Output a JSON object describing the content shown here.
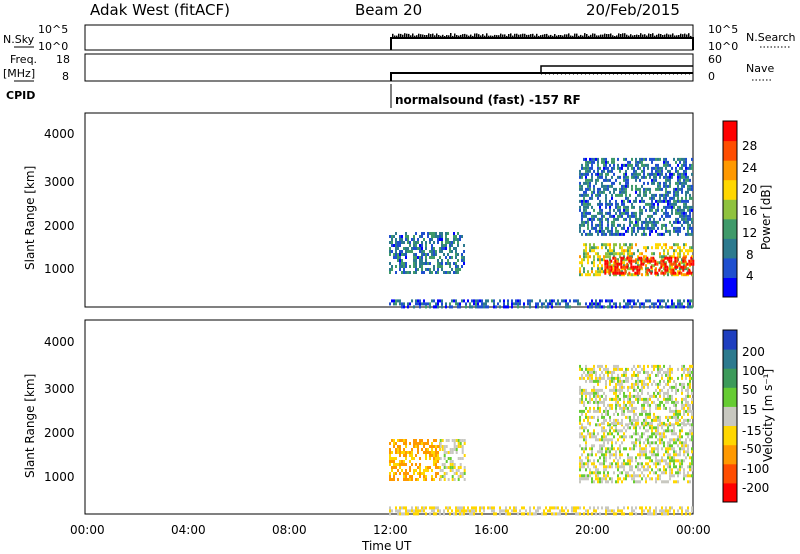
{
  "header": {
    "station": "Adak West (fitACF)",
    "beam": "Beam 20",
    "date": "20/Feb/2015"
  },
  "strips": {
    "nsky_label": "N.Sky",
    "nsearch_label": "N.Search",
    "freq_label": "Freq.",
    "freq_unit": "[MHz]",
    "nave_label": "Nave",
    "cpid_label": "CPID",
    "nsky_ticks": [
      "10^5",
      "10^0"
    ],
    "nsearch_ticks": [
      "10^5",
      "10^0"
    ],
    "freq_ticks": [
      "18",
      "8"
    ],
    "nave_ticks": [
      "60",
      "0"
    ],
    "cpid_text": "normalsound (fast) -157 RF"
  },
  "power_panel": {
    "ylabel": "Slant Range [km]",
    "yticks": [
      "4000",
      "3000",
      "2000",
      "1000"
    ],
    "colorbar_label": "Power [dB]",
    "colorbar_ticks": [
      "28",
      "24",
      "20",
      "16",
      "12",
      "8",
      "4"
    ],
    "colors": [
      "#0000ff",
      "#1f4fcf",
      "#2c7a8e",
      "#3f9a6a",
      "#8fc23e",
      "#ffd700",
      "#ff9900",
      "#ff4d00",
      "#ff0000"
    ]
  },
  "velocity_panel": {
    "ylabel": "Slant Range [km]",
    "yticks": [
      "4000",
      "3000",
      "2000",
      "1000"
    ],
    "colorbar_label": "Velocity [m s⁻¹]",
    "colorbar_ticks": [
      "200",
      "100",
      "50",
      "15",
      "-15",
      "-50",
      "-100",
      "-200"
    ],
    "colors": [
      "#1f3fbf",
      "#2c7a8e",
      "#3c9a5a",
      "#66cc33",
      "#c8c8c0",
      "#ffd700",
      "#ff9900",
      "#ff4d00",
      "#ff0000"
    ]
  },
  "xaxis": {
    "ticks": [
      "00:00",
      "04:00",
      "08:00",
      "12:00",
      "16:00",
      "20:00",
      "00:00"
    ],
    "label": "Time UT"
  },
  "chart_data": {
    "type": "heatmap",
    "x_range_hours": [
      0,
      24
    ],
    "y_range_km": [
      180,
      4500
    ],
    "data_start_hour": 12,
    "power_regions": [
      {
        "t0": 12.0,
        "t1": 15.0,
        "r0": 950,
        "r1": 1850,
        "value_db": 8
      },
      {
        "t0": 19.5,
        "t1": 24.0,
        "r0": 900,
        "r1": 1600,
        "value_db": 16
      },
      {
        "t0": 20.5,
        "t1": 24.0,
        "r0": 900,
        "r1": 1300,
        "value_db": 28
      },
      {
        "t0": 19.5,
        "t1": 24.0,
        "r0": 1800,
        "r1": 3500,
        "value_db": 8
      },
      {
        "t0": 12.0,
        "t1": 24.0,
        "r0": 180,
        "r1": 350,
        "value_db": 6
      }
    ],
    "velocity_regions": [
      {
        "t0": 12.0,
        "t1": 14.0,
        "r0": 950,
        "r1": 1850,
        "value_ms": -60
      },
      {
        "t0": 14.0,
        "t1": 15.0,
        "r0": 950,
        "r1": 1850,
        "value_ms": 0
      },
      {
        "t0": 19.5,
        "t1": 24.0,
        "r0": 900,
        "r1": 2200,
        "value_ms": 0
      },
      {
        "t0": 19.5,
        "t1": 24.0,
        "r0": 2200,
        "r1": 3500,
        "value_ms": 0
      },
      {
        "t0": 12.0,
        "t1": 24.0,
        "r0": 180,
        "r1": 350,
        "value_ms": -20
      }
    ],
    "freq_mhz": [
      {
        "t0": 12.0,
        "t1": 24.0,
        "value": 10.5
      }
    ],
    "nave": [
      {
        "t0": 12.0,
        "t1": 18.0,
        "value": 15
      },
      {
        "t0": 18.0,
        "t1": 24.0,
        "value": 28
      }
    ],
    "noise_sky": [
      {
        "t0": 12.0,
        "t1": 24.0,
        "value": 1000
      }
    ]
  }
}
